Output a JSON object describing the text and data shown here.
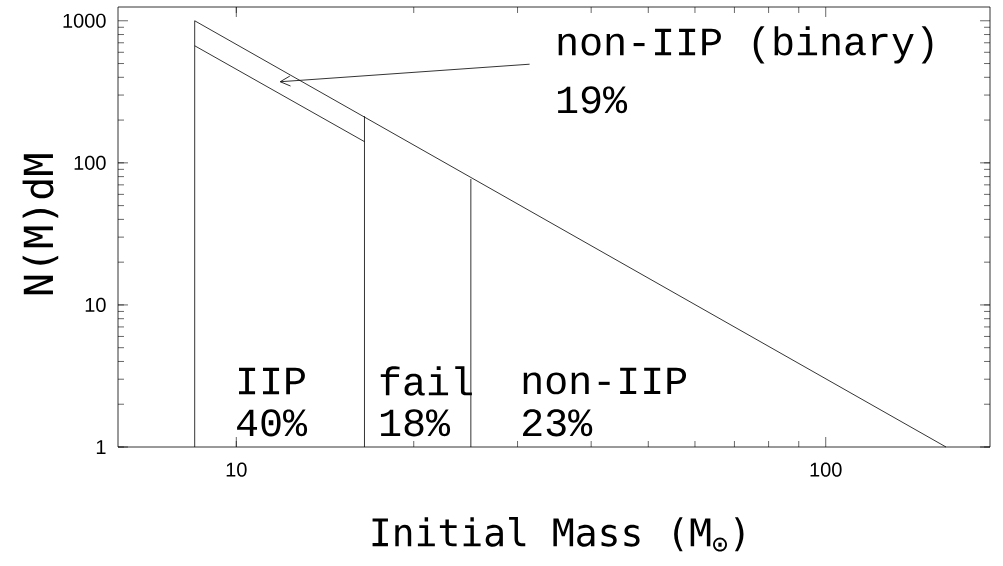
{
  "chart_data": {
    "type": "line",
    "xlabel": "Initial Mass (M$_{⊙}$)",
    "ylabel": "N(M)dM",
    "log": "xy",
    "xlim": [
      6.3,
      190
    ],
    "ylim": [
      1,
      1250
    ],
    "xticks": [
      10,
      100
    ],
    "yticks": [
      1,
      10,
      100,
      1000
    ],
    "marker": "none",
    "line_style": "solid",
    "series": [
      {
        "color": "#000000",
        "x": [
          8.5,
          160
        ],
        "values": [
          1000,
          1
        ]
      },
      {
        "color": "#000000",
        "x": [
          8.5,
          16.5
        ],
        "values": [
          667,
          141
        ]
      },
      {
        "color": "#000000",
        "x": [
          8.5,
          8.5
        ],
        "values": [
          1,
          1000
        ]
      },
      {
        "color": "#000000",
        "x": [
          16.5,
          16.5
        ],
        "values": [
          1,
          213
        ]
      },
      {
        "color": "#000000",
        "x": [
          25,
          25
        ],
        "values": [
          1,
          77
        ]
      }
    ],
    "annotations": [
      "non-IIP (binary)",
      "19%",
      "IIP",
      "40%",
      "fail",
      "18%",
      "non-IIP",
      "23%"
    ]
  }
}
